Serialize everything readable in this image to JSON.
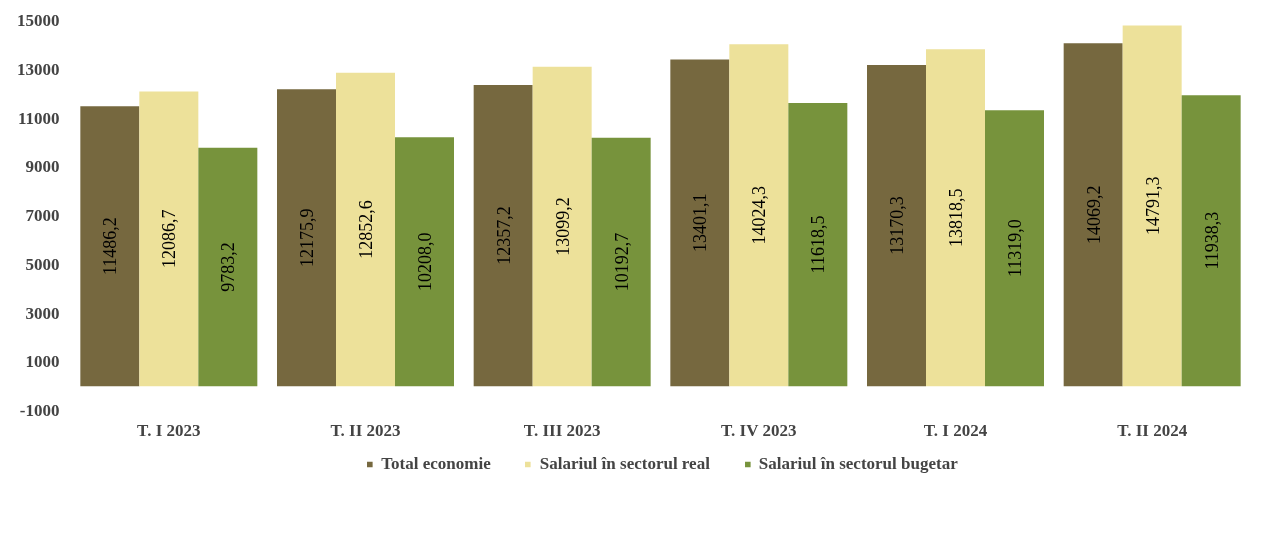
{
  "chart_data": {
    "type": "bar",
    "categories": [
      "T. I 2023",
      "T. II 2023",
      "T. III 2023",
      "T. IV 2023",
      "T. I 2024",
      "T. II 2024"
    ],
    "series": [
      {
        "name": "Total economie",
        "color": "#76683f",
        "values": [
          11486.2,
          12175.9,
          12357.2,
          13401.1,
          13170.3,
          14069.2
        ],
        "value_labels": [
          "11486,2",
          "12175,9",
          "12357,2",
          "13401,1",
          "13170,3",
          "14069,2"
        ]
      },
      {
        "name": "Salariul în sectorul real",
        "color": "#ede19a",
        "values": [
          12086.7,
          12852.6,
          13099.2,
          14024.3,
          13818.5,
          14791.3
        ],
        "value_labels": [
          "12086,7",
          "12852,6",
          "13099,2",
          "14024,3",
          "13818,5",
          "14791,3"
        ]
      },
      {
        "name": "Salariul în sectorul bugetar",
        "color": "#77933c",
        "values": [
          9783.2,
          10208.0,
          10192.7,
          11618.5,
          11319.0,
          11938.3
        ],
        "value_labels": [
          "9783,2",
          "10208,0",
          "10192,7",
          "11618,5",
          "11319,0",
          "11938,3"
        ]
      }
    ],
    "ylim": [
      -1000,
      15000
    ],
    "yticks": [
      -1000,
      1000,
      3000,
      5000,
      7000,
      9000,
      11000,
      13000,
      15000
    ],
    "grid": false,
    "legend": "bottom"
  }
}
